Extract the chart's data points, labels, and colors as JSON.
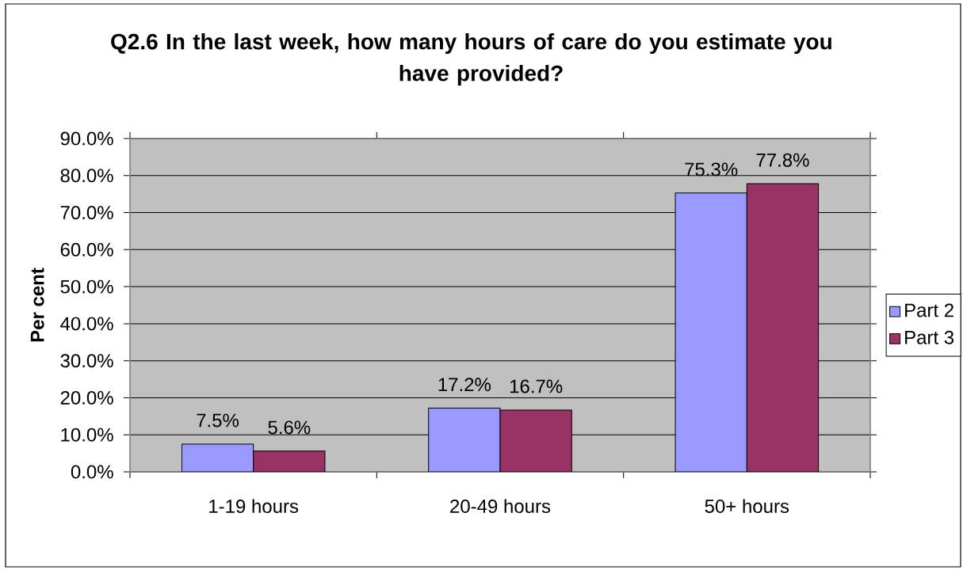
{
  "chart_data": {
    "type": "bar",
    "title": "Q2.6 In the last week, how many hours of care do you estimate you have provided?",
    "ylabel": "Per cent",
    "categories": [
      "1-19 hours",
      "20-49 hours",
      "50+ hours"
    ],
    "series": [
      {
        "name": "Part 2",
        "color": "#9999ff",
        "values": [
          7.5,
          17.2,
          75.3
        ],
        "value_labels": [
          "7.5%",
          "17.2%",
          "75.3%"
        ]
      },
      {
        "name": "Part 3",
        "color": "#993366",
        "values": [
          5.6,
          16.7,
          77.8
        ],
        "value_labels": [
          "5.6%",
          "16.7%",
          "77.8%"
        ]
      }
    ],
    "ylim": [
      0,
      90
    ],
    "yticks": [
      {
        "value": 0,
        "label": "0.0%"
      },
      {
        "value": 10,
        "label": "10.0%"
      },
      {
        "value": 20,
        "label": "20.0%"
      },
      {
        "value": 30,
        "label": "30.0%"
      },
      {
        "value": 40,
        "label": "40.0%"
      },
      {
        "value": 50,
        "label": "50.0%"
      },
      {
        "value": 60,
        "label": "60.0%"
      },
      {
        "value": 70,
        "label": "70.0%"
      },
      {
        "value": 80,
        "label": "80.0%"
      },
      {
        "value": 90,
        "label": "90.0%"
      }
    ],
    "grid": "y",
    "legend": "right"
  }
}
